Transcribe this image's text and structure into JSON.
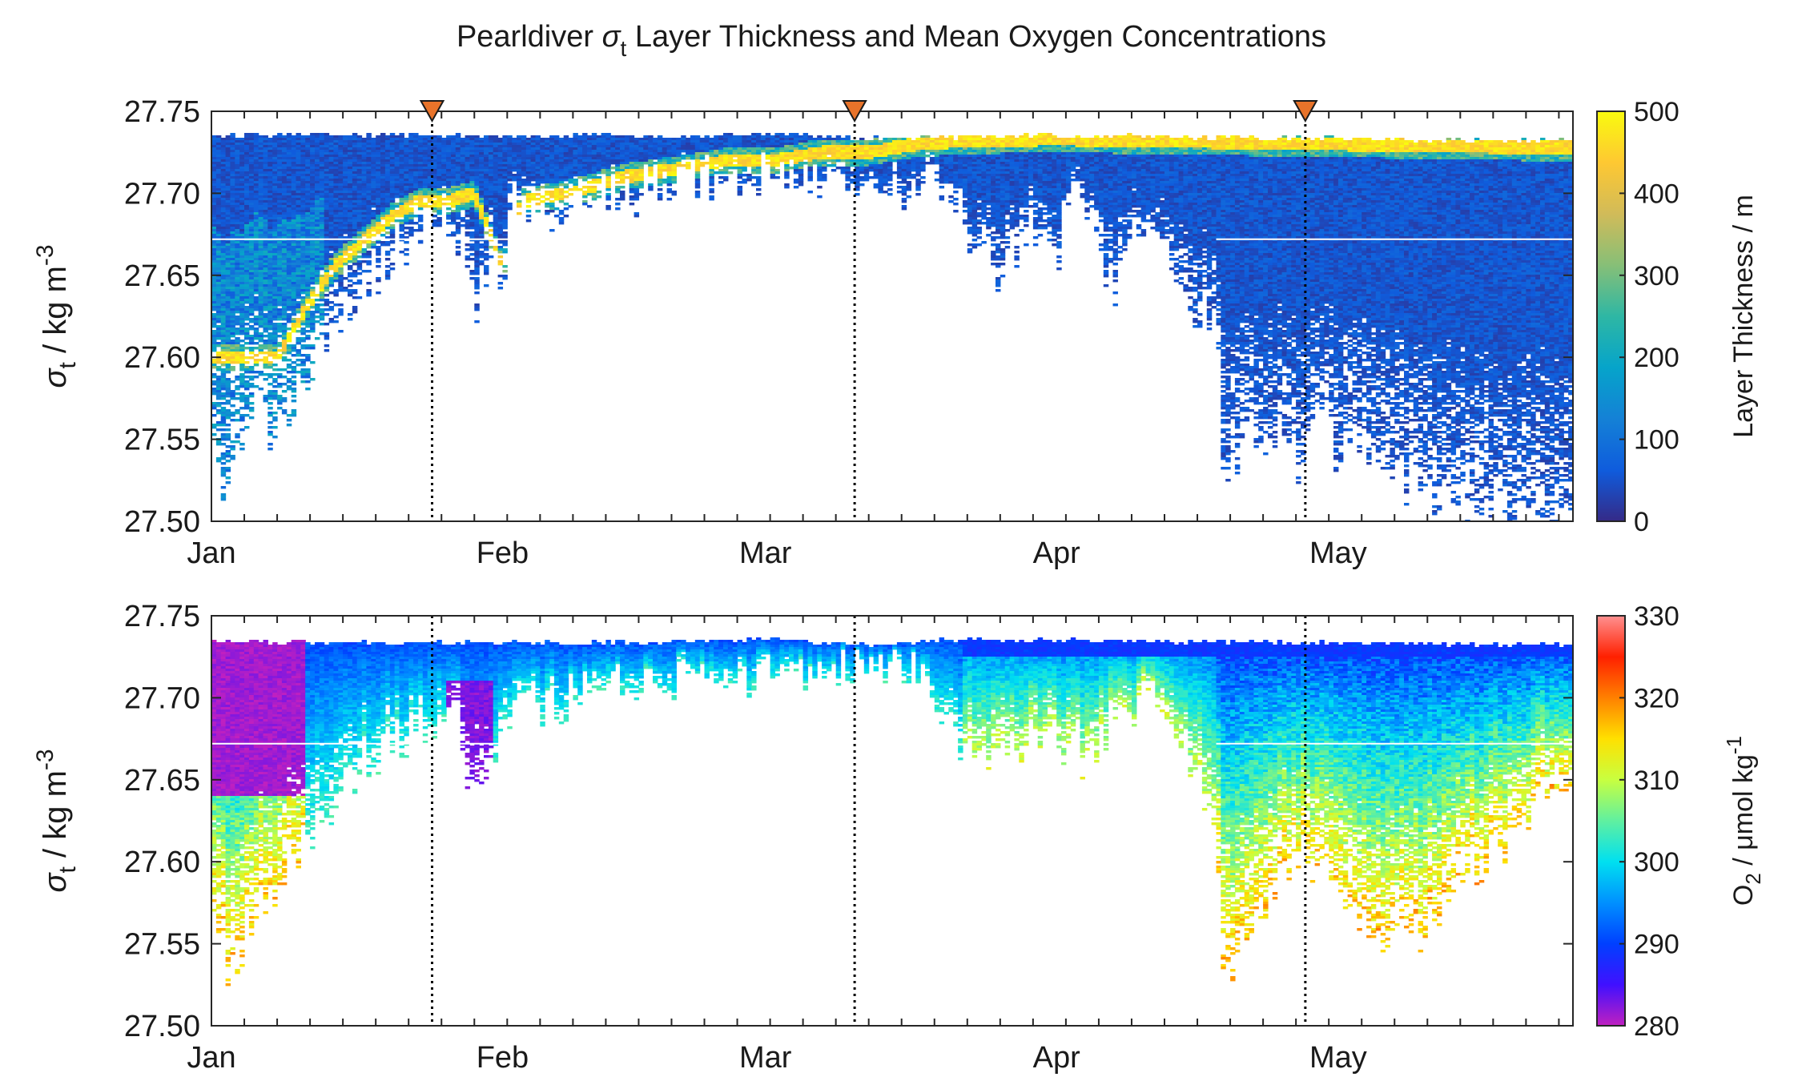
{
  "figure": {
    "title_prefix": "Pearldiver ",
    "title_sigma": "σ",
    "title_sub": "t",
    "title_suffix": " Layer Thickness and Mean Oxygen Concentrations"
  },
  "chart_data": [
    {
      "type": "heatmap",
      "ylabel": {
        "sigma": "σ",
        "sub": "t",
        "text": " / kg m",
        "sup": "-3"
      },
      "ylim": [
        27.5,
        27.75
      ],
      "yticks": [
        "27.75",
        "27.70",
        "27.65",
        "27.60",
        "27.55",
        "27.50"
      ],
      "xticks": [
        "Jan",
        "Feb",
        "Mar",
        "Apr",
        "May"
      ],
      "colorbar": {
        "label": "Layer Thickness / m",
        "min": 0,
        "max": 500,
        "ticks": [
          "500",
          "400",
          "300",
          "200",
          "100",
          "0"
        ],
        "colormap": "parula",
        "colors": [
          "#352a87",
          "#0f5cdd",
          "#1481d6",
          "#06a4ca",
          "#2eb7a4",
          "#87bf77",
          "#d1bb59",
          "#fec832",
          "#f9fb0e"
        ]
      },
      "markers": {
        "symbol": "inverted-triangle",
        "color": "#e8732a",
        "x_day": [
          23.5,
          68.5,
          116.5
        ]
      },
      "dotted_lines_x_day": [
        23.5,
        68.5,
        116.5
      ],
      "upper_boundary": [
        [
          0,
          27.737
        ],
        [
          10,
          27.737
        ],
        [
          20,
          27.737
        ],
        [
          30,
          27.736
        ],
        [
          40,
          27.737
        ],
        [
          50,
          27.736
        ],
        [
          60,
          27.738
        ],
        [
          70,
          27.735
        ],
        [
          80,
          27.736
        ],
        [
          90,
          27.737
        ],
        [
          100,
          27.736
        ],
        [
          110,
          27.735
        ],
        [
          120,
          27.735
        ],
        [
          130,
          27.734
        ],
        [
          140,
          27.734
        ],
        [
          145,
          27.734
        ]
      ],
      "lower_boundary": [
        [
          0,
          27.57
        ],
        [
          1,
          27.52
        ],
        [
          3,
          27.54
        ],
        [
          5,
          27.57
        ],
        [
          7,
          27.55
        ],
        [
          9,
          27.58
        ],
        [
          11,
          27.6
        ],
        [
          13,
          27.62
        ],
        [
          15,
          27.63
        ],
        [
          17,
          27.65
        ],
        [
          19,
          27.66
        ],
        [
          21,
          27.67
        ],
        [
          23,
          27.68
        ],
        [
          26,
          27.68
        ],
        [
          27,
          27.66
        ],
        [
          28,
          27.63
        ],
        [
          29,
          27.64
        ],
        [
          30,
          27.66
        ],
        [
          31,
          27.64
        ],
        [
          32,
          27.69
        ],
        [
          38,
          27.69
        ],
        [
          44,
          27.7
        ],
        [
          50,
          27.705
        ],
        [
          56,
          27.705
        ],
        [
          60,
          27.71
        ],
        [
          66,
          27.7
        ],
        [
          72,
          27.7
        ],
        [
          78,
          27.705
        ],
        [
          81,
          27.67
        ],
        [
          84,
          27.65
        ],
        [
          87,
          27.68
        ],
        [
          90,
          27.66
        ],
        [
          92,
          27.7
        ],
        [
          96,
          27.64
        ],
        [
          100,
          27.69
        ],
        [
          104,
          27.63
        ],
        [
          107,
          27.62
        ],
        [
          108,
          27.51
        ],
        [
          110,
          27.56
        ],
        [
          112,
          27.54
        ],
        [
          114,
          27.57
        ],
        [
          116,
          27.52
        ],
        [
          118,
          27.58
        ],
        [
          120,
          27.54
        ],
        [
          122,
          27.55
        ],
        [
          125,
          27.53
        ],
        [
          128,
          27.52
        ],
        [
          131,
          27.51
        ],
        [
          134,
          27.5
        ],
        [
          137,
          27.51
        ],
        [
          140,
          27.5
        ],
        [
          145,
          27.5
        ]
      ],
      "core_line": [
        [
          7,
          27.6
        ],
        [
          10,
          27.63
        ],
        [
          13,
          27.655
        ],
        [
          16,
          27.67
        ],
        [
          19,
          27.685
        ],
        [
          22,
          27.695
        ],
        [
          25,
          27.695
        ],
        [
          28,
          27.7
        ],
        [
          31,
          27.655
        ],
        [
          33,
          27.695
        ],
        [
          38,
          27.7
        ],
        [
          44,
          27.71
        ],
        [
          50,
          27.715
        ],
        [
          55,
          27.72
        ],
        [
          60,
          27.72
        ],
        [
          65,
          27.725
        ],
        [
          70,
          27.725
        ],
        [
          75,
          27.73
        ],
        [
          80,
          27.732
        ],
        [
          90,
          27.733
        ],
        [
          100,
          27.732
        ],
        [
          110,
          27.731
        ],
        [
          120,
          27.73
        ],
        [
          130,
          27.729
        ],
        [
          140,
          27.728
        ]
      ]
    },
    {
      "type": "heatmap",
      "ylabel": {
        "sigma": "σ",
        "sub": "t",
        "text": " / kg m",
        "sup": "-3"
      },
      "ylim": [
        27.5,
        27.75
      ],
      "yticks": [
        "27.75",
        "27.70",
        "27.65",
        "27.60",
        "27.55",
        "27.50"
      ],
      "xticks": [
        "Jan",
        "Feb",
        "Mar",
        "Apr",
        "May"
      ],
      "colorbar": {
        "label_main": "O",
        "label_sub": "2",
        "label_rest": " / μmol kg",
        "label_sup": "-1",
        "min": 280,
        "max": 330,
        "ticks": [
          "330",
          "320",
          "310",
          "300",
          "290",
          "280"
        ],
        "colormap": "jet-magenta",
        "colors": [
          "#c020c0",
          "#4010ff",
          "#0040ff",
          "#0090ff",
          "#00e0f0",
          "#60f0a0",
          "#c8ff40",
          "#ffe000",
          "#ff8000",
          "#ff2000",
          "#ff9090"
        ]
      },
      "dotted_lines_x_day": [
        23.5,
        68.5,
        116.5
      ],
      "upper_boundary": [
        [
          0,
          27.736
        ],
        [
          20,
          27.735
        ],
        [
          40,
          27.735
        ],
        [
          60,
          27.737
        ],
        [
          70,
          27.734
        ],
        [
          80,
          27.737
        ],
        [
          100,
          27.736
        ],
        [
          120,
          27.735
        ],
        [
          145,
          27.734
        ]
      ],
      "lower_boundary": [
        [
          0,
          27.57
        ],
        [
          2,
          27.53
        ],
        [
          4,
          27.56
        ],
        [
          6,
          27.58
        ],
        [
          8,
          27.59
        ],
        [
          10,
          27.61
        ],
        [
          13,
          27.63
        ],
        [
          16,
          27.66
        ],
        [
          19,
          27.67
        ],
        [
          22,
          27.68
        ],
        [
          26,
          27.69
        ],
        [
          28,
          27.64
        ],
        [
          30,
          27.65
        ],
        [
          32,
          27.695
        ],
        [
          40,
          27.7
        ],
        [
          50,
          27.71
        ],
        [
          60,
          27.715
        ],
        [
          70,
          27.72
        ],
        [
          76,
          27.71
        ],
        [
          80,
          27.66
        ],
        [
          84,
          27.66
        ],
        [
          88,
          27.68
        ],
        [
          92,
          27.66
        ],
        [
          96,
          27.68
        ],
        [
          100,
          27.7
        ],
        [
          104,
          27.66
        ],
        [
          107,
          27.62
        ],
        [
          108,
          27.52
        ],
        [
          110,
          27.56
        ],
        [
          113,
          27.58
        ],
        [
          116,
          27.6
        ],
        [
          120,
          27.58
        ],
        [
          124,
          27.56
        ],
        [
          128,
          27.55
        ],
        [
          132,
          27.58
        ],
        [
          135,
          27.6
        ],
        [
          138,
          27.61
        ],
        [
          142,
          27.64
        ],
        [
          145,
          27.65
        ]
      ]
    }
  ]
}
